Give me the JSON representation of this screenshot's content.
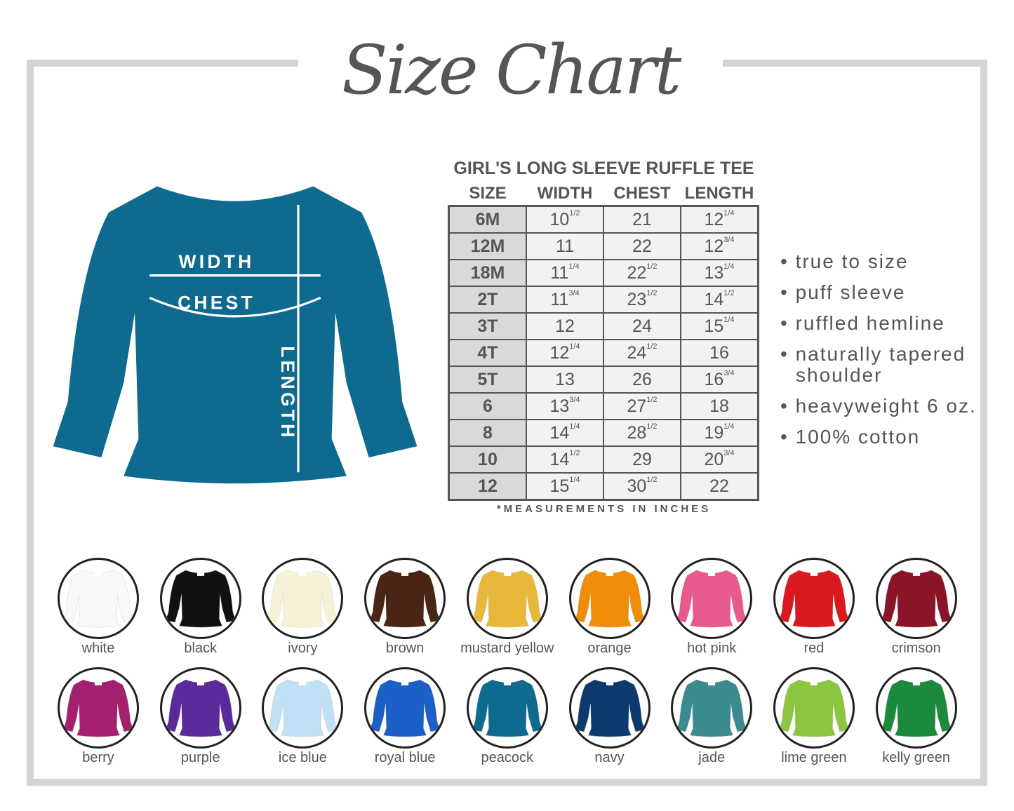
{
  "title": "Size Chart",
  "garment": {
    "color": "#0e6a8e",
    "labels": {
      "width": "WIDTH",
      "chest": "CHEST",
      "length": "LENGTH"
    }
  },
  "table": {
    "title": "GIRL'S LONG SLEEVE RUFFLE TEE",
    "headers": [
      "SIZE",
      "WIDTH",
      "CHEST",
      "LENGTH"
    ],
    "rows": [
      [
        "6M",
        "10 1/2",
        "21",
        "12 1/4"
      ],
      [
        "12M",
        "11",
        "22",
        "12 3/4"
      ],
      [
        "18M",
        "11 1/4",
        "22 1/2",
        "13 1/4"
      ],
      [
        "2T",
        "11 3/4",
        "23 1/2",
        "14 1/2"
      ],
      [
        "3T",
        "12",
        "24",
        "15 1/4"
      ],
      [
        "4T",
        "12 1/4",
        "24 1/2",
        "16"
      ],
      [
        "5T",
        "13",
        "26",
        "16 3/4"
      ],
      [
        "6",
        "13 3/4",
        "27 1/2",
        "18"
      ],
      [
        "8",
        "14 1/4",
        "28 1/2",
        "19 1/4"
      ],
      [
        "10",
        "14 1/2",
        "29",
        "20 3/4"
      ],
      [
        "12",
        "15 1/4",
        "30 1/2",
        "22"
      ]
    ],
    "note": "*MEASUREMENTS IN INCHES"
  },
  "features": [
    "• true to size",
    "• puff sleeve",
    "• ruffled hemline",
    "• naturally tapered shoulder",
    "• heavyweight 6 oz.",
    "• 100% cotton"
  ],
  "colors": [
    {
      "name": "white",
      "hex": "#f8f8f8"
    },
    {
      "name": "black",
      "hex": "#111111"
    },
    {
      "name": "ivory",
      "hex": "#f6f2d6"
    },
    {
      "name": "brown",
      "hex": "#4a2414"
    },
    {
      "name": "mustard yellow",
      "hex": "#e8b83a"
    },
    {
      "name": "orange",
      "hex": "#ee8d0a"
    },
    {
      "name": "hot pink",
      "hex": "#e85a8e"
    },
    {
      "name": "red",
      "hex": "#d81a1e"
    },
    {
      "name": "crimson",
      "hex": "#8a1428"
    },
    {
      "name": "berry",
      "hex": "#a3206e"
    },
    {
      "name": "purple",
      "hex": "#5b2a9a"
    },
    {
      "name": "ice blue",
      "hex": "#c0e0f6"
    },
    {
      "name": "royal blue",
      "hex": "#1c5fc6"
    },
    {
      "name": "peacock",
      "hex": "#0e6a8e"
    },
    {
      "name": "navy",
      "hex": "#0c3a6e"
    },
    {
      "name": "jade",
      "hex": "#3a8a8e"
    },
    {
      "name": "lime green",
      "hex": "#8cc63e"
    },
    {
      "name": "kelly green",
      "hex": "#1b8a3a"
    }
  ]
}
